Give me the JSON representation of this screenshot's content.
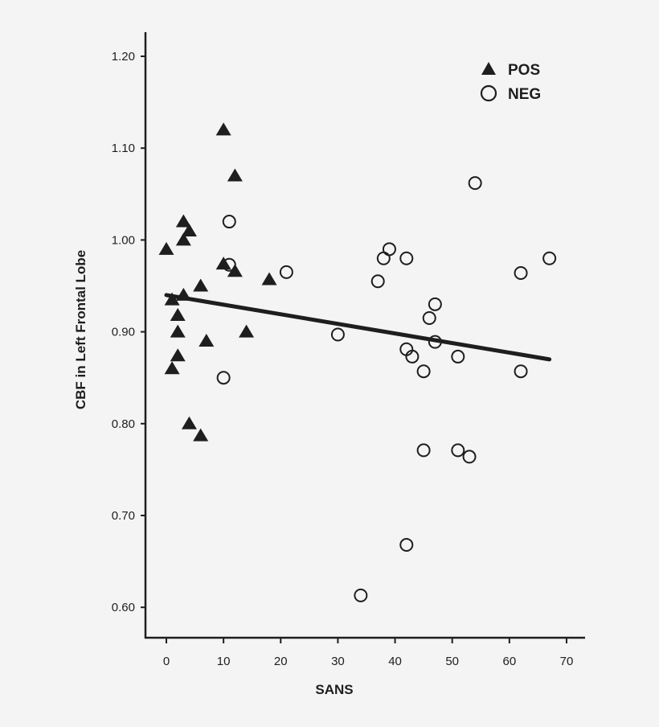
{
  "chart_data": {
    "type": "scatter",
    "title": "",
    "xlabel": "SANS",
    "ylabel": "CBF in Left Frontal Lobe",
    "xlim": [
      -4,
      73
    ],
    "ylim": [
      0.575,
      1.225
    ],
    "xticks": [
      0,
      10,
      20,
      30,
      40,
      50,
      60,
      70
    ],
    "xtick_labels": [
      "0",
      "10",
      "20",
      "30",
      "40",
      "50",
      "60",
      "70"
    ],
    "yticks": [
      0.6,
      0.7,
      0.8,
      0.9,
      1.0,
      1.1,
      1.2
    ],
    "ytick_labels": [
      "0.60",
      "0.70",
      "0.80",
      "0.90",
      "1.00",
      "1.10",
      "1.20"
    ],
    "grid": false,
    "legend_position": "top-right",
    "series": [
      {
        "name": "POS",
        "marker": "filled-triangle",
        "color": "#1e1e1e",
        "points": [
          [
            10,
            1.12
          ],
          [
            12,
            1.07
          ],
          [
            3,
            1.02
          ],
          [
            4,
            1.01
          ],
          [
            3,
            1.0
          ],
          [
            0,
            0.99
          ],
          [
            10,
            0.974
          ],
          [
            12,
            0.966
          ],
          [
            18,
            0.957
          ],
          [
            6,
            0.95
          ],
          [
            3,
            0.94
          ],
          [
            1,
            0.935
          ],
          [
            2,
            0.918
          ],
          [
            2,
            0.9
          ],
          [
            14,
            0.9
          ],
          [
            7,
            0.89
          ],
          [
            2,
            0.874
          ],
          [
            1,
            0.86
          ],
          [
            4,
            0.8
          ],
          [
            6,
            0.787
          ]
        ]
      },
      {
        "name": "NEG",
        "marker": "open-circle",
        "color": "#1e1e1e",
        "points": [
          [
            11,
            1.02
          ],
          [
            11,
            0.973
          ],
          [
            21,
            0.965
          ],
          [
            10,
            0.85
          ],
          [
            54,
            1.062
          ],
          [
            39,
            0.99
          ],
          [
            38,
            0.98
          ],
          [
            42,
            0.98
          ],
          [
            37,
            0.955
          ],
          [
            67,
            0.98
          ],
          [
            62,
            0.964
          ],
          [
            47,
            0.93
          ],
          [
            46,
            0.915
          ],
          [
            30,
            0.897
          ],
          [
            47,
            0.889
          ],
          [
            42,
            0.881
          ],
          [
            43,
            0.873
          ],
          [
            51,
            0.873
          ],
          [
            45,
            0.857
          ],
          [
            62,
            0.857
          ],
          [
            45,
            0.771
          ],
          [
            51,
            0.771
          ],
          [
            53,
            0.764
          ],
          [
            42,
            0.668
          ],
          [
            34,
            0.613
          ]
        ]
      }
    ],
    "regression_line": {
      "x": [
        0,
        67
      ],
      "y": [
        0.94,
        0.87
      ]
    }
  }
}
